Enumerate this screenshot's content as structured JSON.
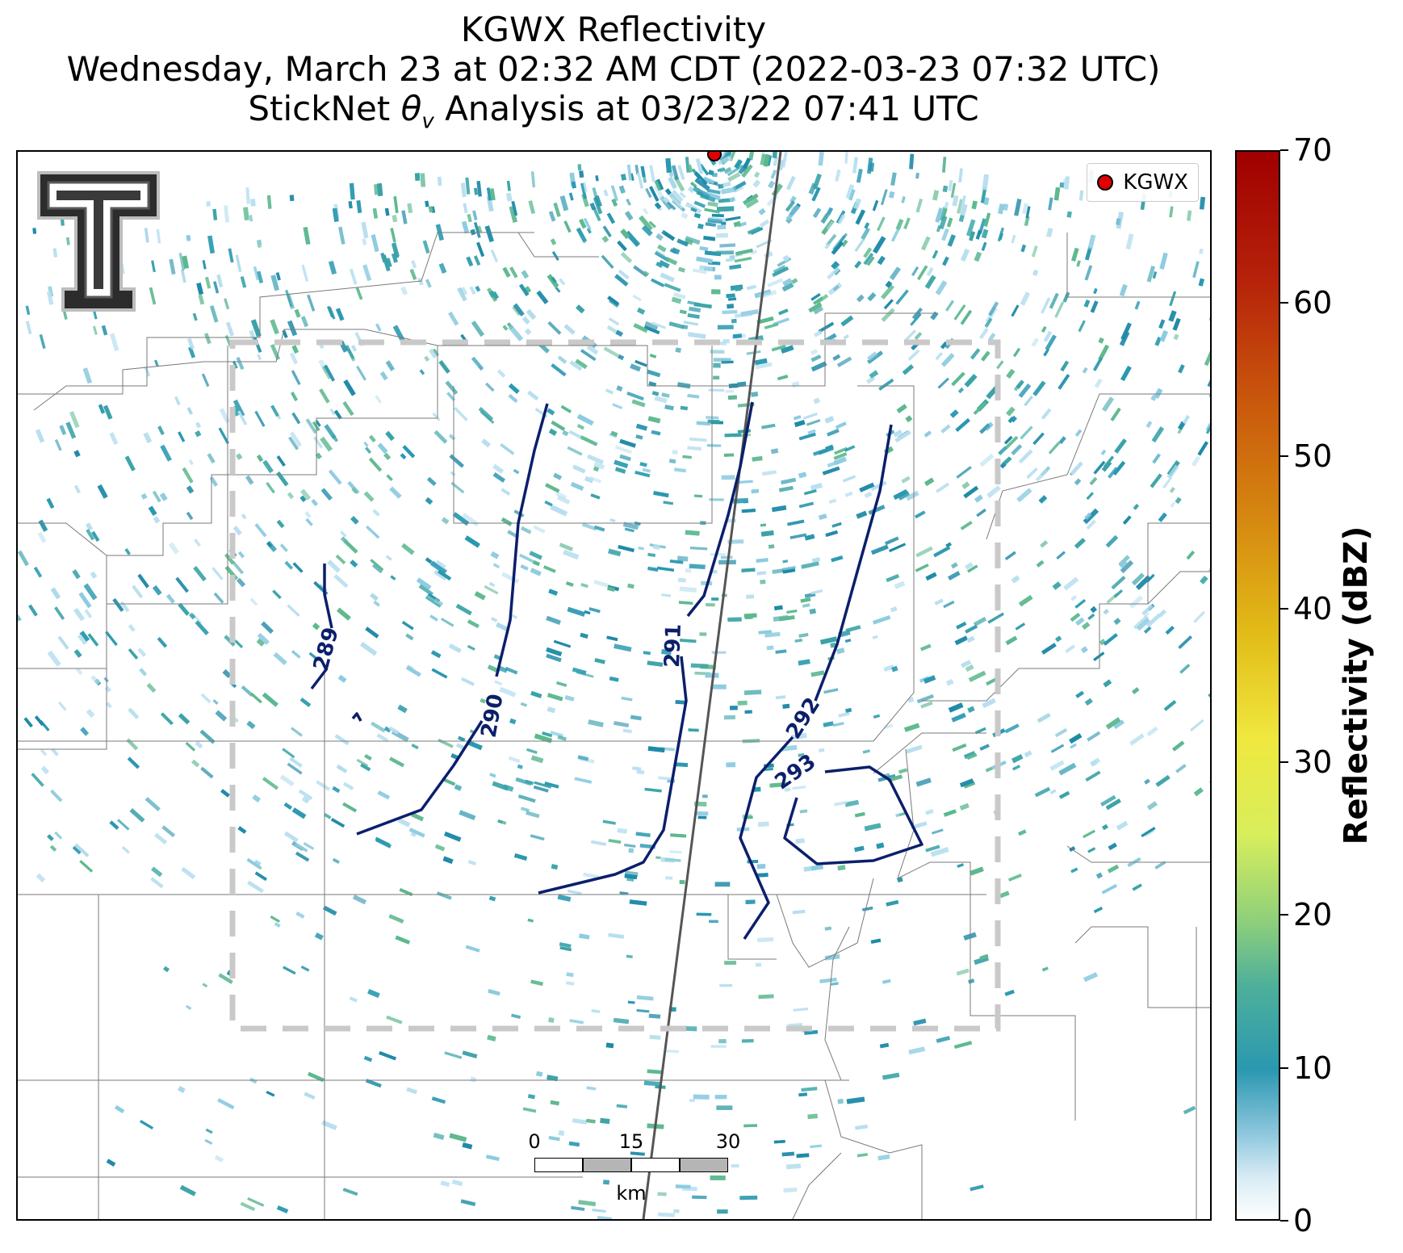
{
  "title": {
    "line1": "KGWX Reflectivity",
    "line2": "Wednesday, March 23 at 02:32 AM CDT (2022-03-23 07:32 UTC)",
    "line3_pre": "StickNet ",
    "line3_symbol": "θ",
    "line3_sub": "v",
    "line3_post": " Analysis at 03/23/22 07:41 UTC"
  },
  "legend": {
    "label": "KGWX",
    "marker_color": "#e00000"
  },
  "radar_site": {
    "name": "KGWX"
  },
  "contours": [
    {
      "label": "289",
      "value": 289
    },
    {
      "label": "290",
      "value": 290
    },
    {
      "label": "291",
      "value": 291
    },
    {
      "label": "292",
      "value": 292
    },
    {
      "label": "293",
      "value": 293
    }
  ],
  "contour_color": "#0b1f6b",
  "scalebar": {
    "labels": [
      "0",
      "15",
      "30"
    ],
    "unit": "km"
  },
  "colorbar": {
    "title": "Reflectivity (dBZ)",
    "ticks": [
      "0",
      "10",
      "20",
      "30",
      "40",
      "50",
      "60",
      "70"
    ],
    "range": [
      0,
      70
    ],
    "colors": [
      "#ffffff",
      "#2a98b0",
      "#8fd07a",
      "#efe83e",
      "#d58610",
      "#a00000"
    ]
  },
  "logo": {
    "icon": "double-t-logo-icon"
  },
  "echo_colors": [
    "#2a98b0",
    "#3aa3a8",
    "#5db88e",
    "#8ccbe0",
    "#b8dff0",
    "#1f8aa8"
  ]
}
